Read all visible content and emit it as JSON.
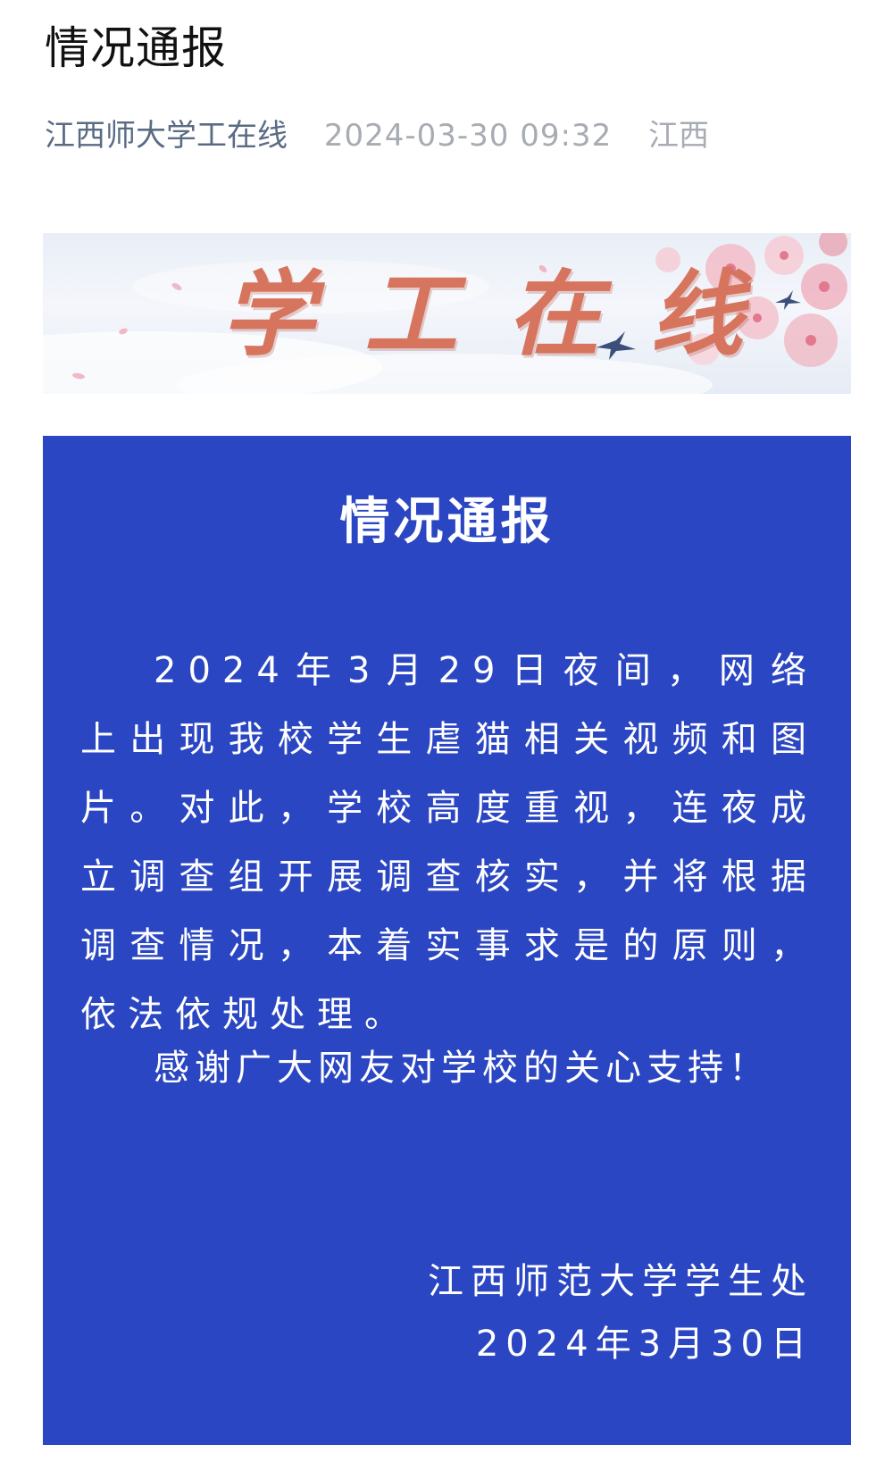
{
  "article": {
    "title": "情况通报",
    "account": "江西师大学工在线",
    "datetime": "2024-03-30 09:32",
    "location": "江西"
  },
  "banner": {
    "title": "学工在线",
    "title_color": "#d7745e"
  },
  "notice": {
    "background_color": "#2a46c2",
    "heading": "情况通报",
    "body": "2024年3月29日夜间，网络上出现我校学生虐猫相关视频和图片。对此，学校高度重视，连夜成立调查组开展调查核实，并将根据调查情况，本着实事求是的原则，依法依规处理。",
    "thanks": "感谢广大网友对学校的关心支持！",
    "signature_org": "江西师范大学学生处",
    "signature_date": "2024年3月30日"
  }
}
